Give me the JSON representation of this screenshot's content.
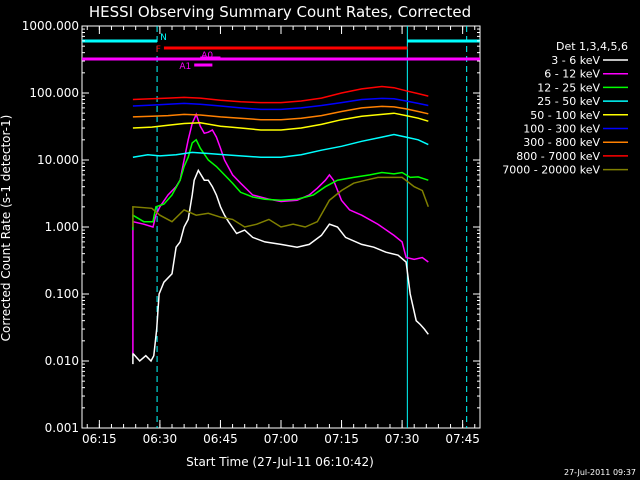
{
  "chart_data": {
    "type": "line",
    "title": "HESSI Observing Summary Count Rates, Corrected",
    "xlabel": "Start Time (27-Jul-11 06:10:42)",
    "ylabel": "Corrected Count Rate (s-1 detector-1)",
    "x_ticks": [
      "06:15",
      "06:30",
      "06:45",
      "07:00",
      "07:15",
      "07:30",
      "07:45"
    ],
    "x_tick_minutes": [
      15,
      30,
      45,
      60,
      75,
      90,
      105
    ],
    "y_ticks": [
      "1000.000",
      "100.000",
      "10.000",
      "1.000",
      "0.100",
      "0.010",
      "0.001"
    ],
    "y_tick_values": [
      1000,
      100,
      10,
      1,
      0.1,
      0.01,
      0.001
    ],
    "x_range_minutes": [
      10.7,
      109.3
    ],
    "y_range": [
      0.001,
      1000
    ],
    "y_scale": "log",
    "legend_title": "Det 1,3,4,5,6",
    "legend_position": "right",
    "series": [
      {
        "name": "3 - 6 keV",
        "color": "#ffffff",
        "points": [
          [
            23.3,
            0.009
          ],
          [
            23.3,
            0.013
          ],
          [
            25,
            0.01
          ],
          [
            26.5,
            0.012
          ],
          [
            27.8,
            0.01
          ],
          [
            28.5,
            0.012
          ],
          [
            29.2,
            0.03
          ],
          [
            29.8,
            0.1
          ],
          [
            31,
            0.15
          ],
          [
            33,
            0.2
          ],
          [
            34,
            0.5
          ],
          [
            35,
            0.6
          ],
          [
            36,
            1.0
          ],
          [
            37,
            1.3
          ],
          [
            38,
            3
          ],
          [
            38.5,
            5
          ],
          [
            39.5,
            7
          ],
          [
            41,
            5
          ],
          [
            42,
            5
          ],
          [
            43,
            4
          ],
          [
            44,
            3
          ],
          [
            45,
            2
          ],
          [
            46,
            1.5
          ],
          [
            47,
            1.2
          ],
          [
            49,
            0.8
          ],
          [
            51,
            0.9
          ],
          [
            53,
            0.7
          ],
          [
            56,
            0.6
          ],
          [
            60,
            0.55
          ],
          [
            64,
            0.5
          ],
          [
            67,
            0.55
          ],
          [
            70,
            0.75
          ],
          [
            72,
            1.1
          ],
          [
            74,
            1.0
          ],
          [
            76,
            0.7
          ],
          [
            80,
            0.55
          ],
          [
            83,
            0.5
          ],
          [
            86,
            0.42
          ],
          [
            89,
            0.38
          ],
          [
            91,
            0.3
          ],
          [
            92,
            0.1
          ],
          [
            93.5,
            0.04
          ],
          [
            94.5,
            0.035
          ],
          [
            95.5,
            0.03
          ],
          [
            96.5,
            0.025
          ]
        ]
      },
      {
        "name": "6 - 12 keV",
        "color": "#ff00ff",
        "points": [
          [
            23.3,
            0.013
          ],
          [
            23.3,
            1.2
          ],
          [
            26,
            1.1
          ],
          [
            28.3,
            1.0
          ],
          [
            29,
            1.5
          ],
          [
            30,
            2
          ],
          [
            32,
            3
          ],
          [
            34,
            4
          ],
          [
            35,
            5
          ],
          [
            36,
            10
          ],
          [
            37,
            20
          ],
          [
            38,
            35
          ],
          [
            39,
            48
          ],
          [
            40,
            32
          ],
          [
            41,
            25
          ],
          [
            42,
            26
          ],
          [
            43,
            28
          ],
          [
            44,
            22
          ],
          [
            45,
            15
          ],
          [
            46,
            10
          ],
          [
            48,
            6
          ],
          [
            50,
            4.5
          ],
          [
            53,
            3
          ],
          [
            57,
            2.6
          ],
          [
            60,
            2.4
          ],
          [
            64,
            2.5
          ],
          [
            67,
            3
          ],
          [
            69,
            3.8
          ],
          [
            71,
            5
          ],
          [
            72,
            6
          ],
          [
            73,
            5
          ],
          [
            75,
            2.5
          ],
          [
            77,
            1.8
          ],
          [
            80,
            1.5
          ],
          [
            84,
            1.1
          ],
          [
            88,
            0.75
          ],
          [
            90,
            0.6
          ],
          [
            91,
            0.35
          ],
          [
            93,
            0.33
          ],
          [
            95,
            0.35
          ],
          [
            96.5,
            0.3
          ]
        ]
      },
      {
        "name": "12 - 25 keV",
        "color": "#00ff00",
        "points": [
          [
            23.3,
            0.9
          ],
          [
            23.3,
            1.5
          ],
          [
            26,
            1.2
          ],
          [
            28.3,
            1.2
          ],
          [
            29,
            2
          ],
          [
            31,
            2.2
          ],
          [
            33,
            3
          ],
          [
            35,
            5
          ],
          [
            36,
            8
          ],
          [
            37,
            11
          ],
          [
            38,
            18
          ],
          [
            39,
            20
          ],
          [
            40,
            15
          ],
          [
            42,
            10
          ],
          [
            44,
            8
          ],
          [
            46,
            6
          ],
          [
            48,
            4.5
          ],
          [
            50,
            3.3
          ],
          [
            53,
            2.8
          ],
          [
            56,
            2.6
          ],
          [
            60,
            2.5
          ],
          [
            64,
            2.6
          ],
          [
            68,
            3.0
          ],
          [
            71,
            4
          ],
          [
            74,
            5
          ],
          [
            78,
            5.5
          ],
          [
            82,
            6
          ],
          [
            85,
            6.5
          ],
          [
            88,
            6.2
          ],
          [
            90,
            6.5
          ],
          [
            92,
            5.5
          ],
          [
            94,
            5.6
          ],
          [
            96.5,
            5.0
          ]
        ]
      },
      {
        "name": "25 - 50 keV",
        "color": "#00ffff",
        "points": [
          [
            23.3,
            11
          ],
          [
            27,
            12
          ],
          [
            30,
            11.5
          ],
          [
            34,
            12
          ],
          [
            38,
            13
          ],
          [
            42,
            12.5
          ],
          [
            46,
            12
          ],
          [
            50,
            11.5
          ],
          [
            55,
            11
          ],
          [
            60,
            11
          ],
          [
            65,
            12
          ],
          [
            70,
            14
          ],
          [
            75,
            16
          ],
          [
            80,
            19
          ],
          [
            85,
            22
          ],
          [
            88,
            24
          ],
          [
            91,
            22
          ],
          [
            94,
            20
          ],
          [
            96.5,
            17
          ]
        ]
      },
      {
        "name": "50 - 100 keV",
        "color": "#ffff00",
        "points": [
          [
            23.3,
            30
          ],
          [
            28,
            31
          ],
          [
            32,
            33
          ],
          [
            36,
            35
          ],
          [
            40,
            36
          ],
          [
            45,
            32
          ],
          [
            50,
            30
          ],
          [
            55,
            28
          ],
          [
            60,
            28
          ],
          [
            65,
            30
          ],
          [
            70,
            34
          ],
          [
            75,
            40
          ],
          [
            80,
            45
          ],
          [
            85,
            48
          ],
          [
            88,
            50
          ],
          [
            91,
            46
          ],
          [
            94,
            42
          ],
          [
            96.5,
            38
          ]
        ]
      },
      {
        "name": "100 - 300 keV",
        "color": "#0000ff",
        "points": [
          [
            23.3,
            64
          ],
          [
            28,
            66
          ],
          [
            32,
            68
          ],
          [
            36,
            70
          ],
          [
            40,
            68
          ],
          [
            45,
            64
          ],
          [
            50,
            60
          ],
          [
            55,
            57
          ],
          [
            60,
            57
          ],
          [
            65,
            60
          ],
          [
            70,
            65
          ],
          [
            75,
            72
          ],
          [
            80,
            80
          ],
          [
            85,
            83
          ],
          [
            88,
            82
          ],
          [
            91,
            76
          ],
          [
            94,
            70
          ],
          [
            96.5,
            65
          ]
        ]
      },
      {
        "name": "300 - 800 keV",
        "color": "#ff8000",
        "points": [
          [
            23.3,
            44
          ],
          [
            28,
            45
          ],
          [
            32,
            46
          ],
          [
            36,
            48
          ],
          [
            40,
            47
          ],
          [
            45,
            44
          ],
          [
            50,
            42
          ],
          [
            55,
            40
          ],
          [
            60,
            40
          ],
          [
            65,
            42
          ],
          [
            70,
            46
          ],
          [
            75,
            53
          ],
          [
            80,
            60
          ],
          [
            85,
            63
          ],
          [
            88,
            62
          ],
          [
            91,
            58
          ],
          [
            94,
            53
          ],
          [
            96.5,
            49
          ]
        ]
      },
      {
        "name": "800 - 7000 keV",
        "color": "#ff0000",
        "points": [
          [
            23.3,
            80
          ],
          [
            28,
            82
          ],
          [
            32,
            84
          ],
          [
            36,
            86
          ],
          [
            40,
            84
          ],
          [
            45,
            78
          ],
          [
            50,
            74
          ],
          [
            55,
            72
          ],
          [
            60,
            72
          ],
          [
            65,
            76
          ],
          [
            70,
            84
          ],
          [
            75,
            100
          ],
          [
            80,
            115
          ],
          [
            85,
            125
          ],
          [
            88,
            120
          ],
          [
            91,
            108
          ],
          [
            94,
            98
          ],
          [
            96.5,
            90
          ]
        ]
      },
      {
        "name": "7000 - 20000 keV",
        "color": "#808000",
        "points": [
          [
            23.3,
            1.0
          ],
          [
            23.3,
            2.0
          ],
          [
            28,
            1.9
          ],
          [
            30,
            1.5
          ],
          [
            33,
            1.2
          ],
          [
            36,
            1.8
          ],
          [
            39,
            1.5
          ],
          [
            42,
            1.6
          ],
          [
            45,
            1.4
          ],
          [
            48,
            1.3
          ],
          [
            51,
            1.0
          ],
          [
            54,
            1.1
          ],
          [
            57,
            1.3
          ],
          [
            60,
            1.0
          ],
          [
            63,
            1.1
          ],
          [
            66,
            1.0
          ],
          [
            69,
            1.2
          ],
          [
            72,
            2.5
          ],
          [
            75,
            3.5
          ],
          [
            78,
            4.5
          ],
          [
            81,
            5
          ],
          [
            84,
            5.5
          ],
          [
            87,
            5.5
          ],
          [
            90,
            5.5
          ],
          [
            93,
            4
          ],
          [
            95,
            3.5
          ],
          [
            96.5,
            2
          ]
        ]
      }
    ],
    "flag_bars": [
      {
        "label": "N",
        "color": "#00ffff",
        "segments": [
          [
            10.7,
            29.3
          ],
          [
            91.3,
            109.3
          ]
        ]
      },
      {
        "label": "F",
        "color": "#ff0000",
        "segments": [
          [
            31,
            91.3
          ]
        ]
      },
      {
        "label": "",
        "color": "#ff00ff",
        "segments": [
          [
            10.7,
            109.3
          ]
        ]
      },
      {
        "label": "A0",
        "color": "#ff00ff",
        "segments": [
          [
            40,
            45
          ]
        ]
      },
      {
        "label": "A1",
        "color": "#ff00ff",
        "segments": [
          [
            38.5,
            43
          ]
        ]
      }
    ],
    "vertical_markers": [
      {
        "x": 29.3,
        "color": "#00ffff",
        "style": "dashed"
      },
      {
        "x": 91.3,
        "color": "#00ffff",
        "style": "solid"
      },
      {
        "x": 106,
        "color": "#00ffff",
        "style": "dashed"
      }
    ]
  },
  "timestamp": "27-Jul-2011 09:37"
}
